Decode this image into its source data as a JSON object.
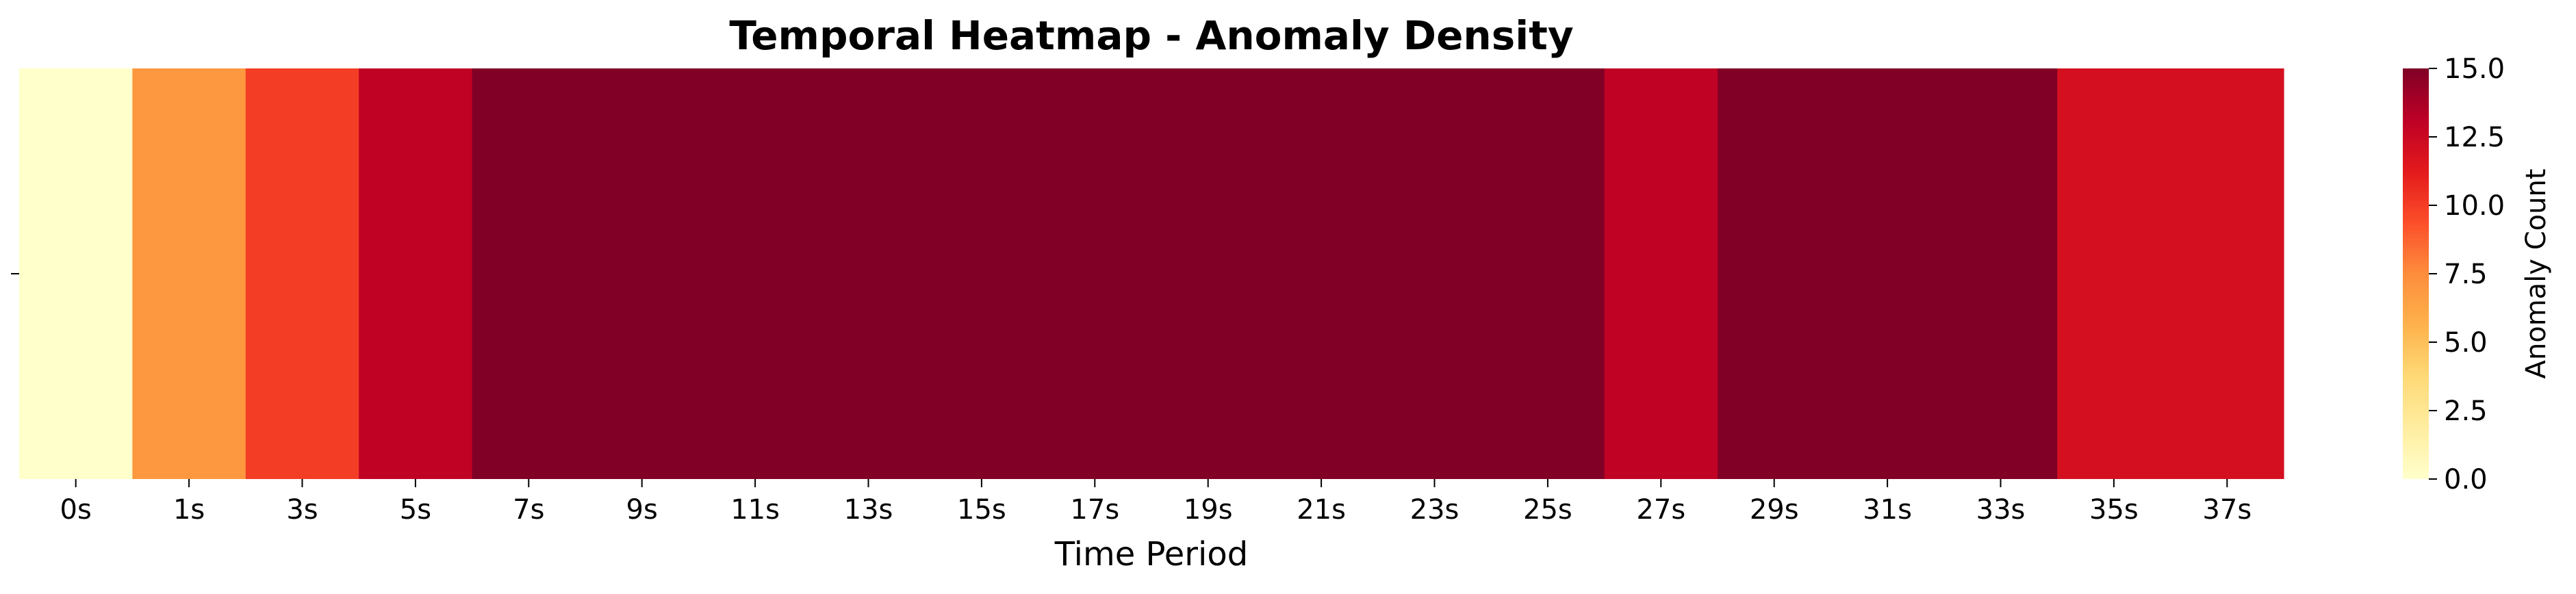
{
  "chart_data": {
    "type": "heatmap",
    "title": "Temporal Heatmap - Anomaly Density",
    "xlabel": "Time Period",
    "ylabel": "",
    "y_tick_labels": [
      ""
    ],
    "x_tick_labels": [
      "0s",
      "1s",
      "3s",
      "5s",
      "7s",
      "9s",
      "11s",
      "13s",
      "15s",
      "17s",
      "19s",
      "21s",
      "23s",
      "25s",
      "27s",
      "29s",
      "31s",
      "33s",
      "35s",
      "37s"
    ],
    "values": [
      0,
      7,
      10,
      13,
      15,
      15,
      15,
      15,
      15,
      15,
      15,
      15,
      15,
      15,
      13,
      15,
      15,
      15,
      12,
      12
    ],
    "colorbar": {
      "label": "Anomaly Count",
      "min": 0.0,
      "max": 15.0,
      "ticks": [
        "0.0",
        "2.5",
        "5.0",
        "7.5",
        "10.0",
        "12.5",
        "15.0"
      ],
      "colormap": "YlOrRd",
      "stops": [
        "#ffffcc",
        "#ffeda0",
        "#fed976",
        "#feb24c",
        "#fd8d3c",
        "#fc4e2a",
        "#e31a1c",
        "#bd0026",
        "#800026"
      ]
    },
    "grid": false,
    "legend": "colorbar-right"
  }
}
